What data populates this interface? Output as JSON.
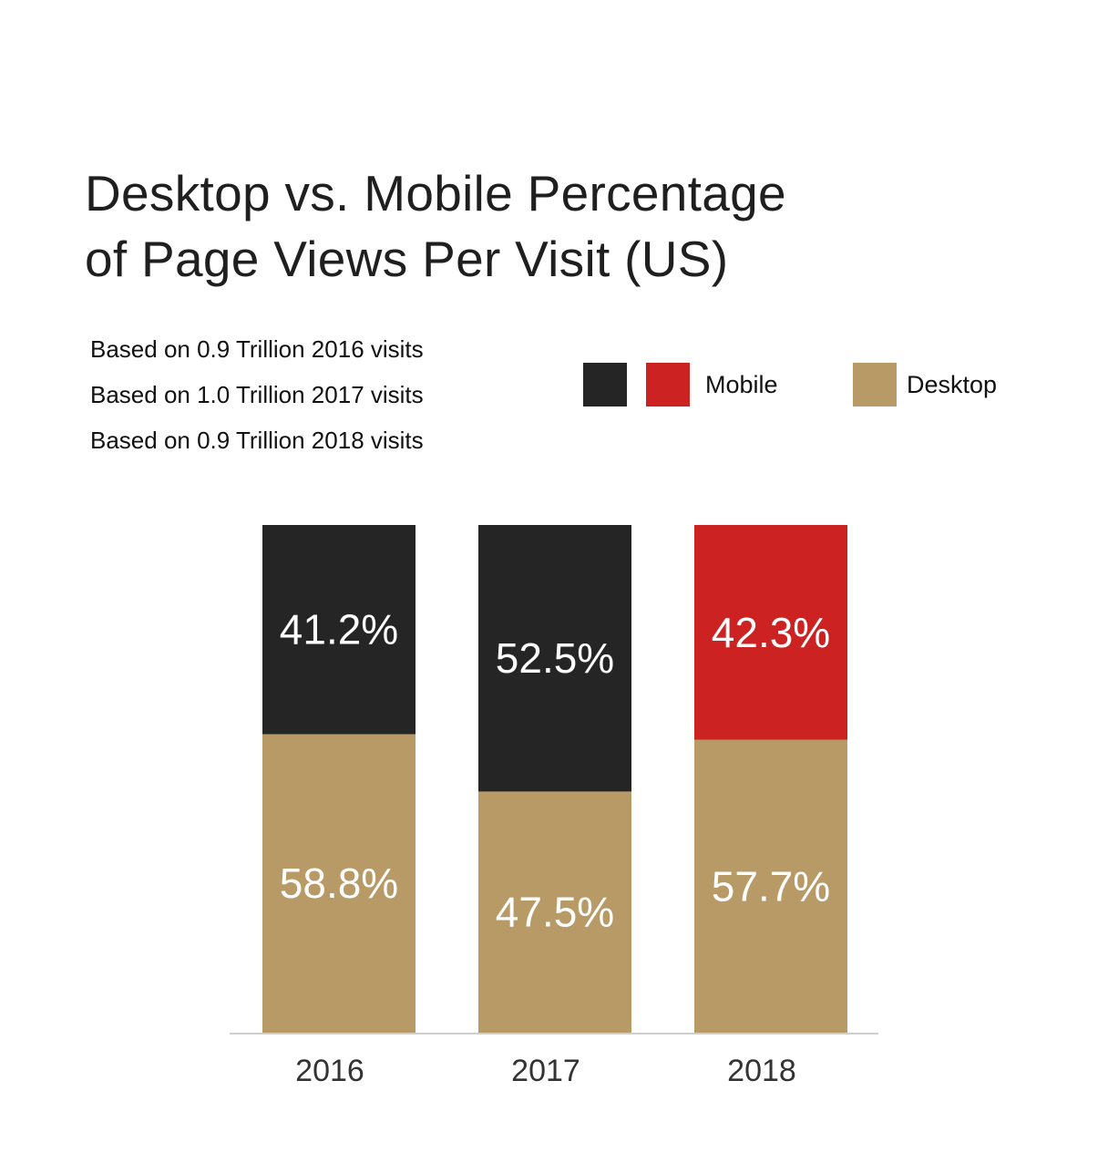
{
  "title": {
    "line1": "Desktop vs. Mobile Percentage",
    "line2": "of Page Views Per Visit (US)"
  },
  "notes": [
    "Based on 0.9 Trillion 2016 visits",
    "Based on 1.0 Trillion 2017 visits",
    "Based on 0.9 Trillion 2018 visits"
  ],
  "legend": {
    "mobile_label": "Mobile",
    "desktop_label": "Desktop",
    "colors": {
      "mobile_dark": "#252525",
      "mobile_red": "#cc2222",
      "desktop": "#b89a67"
    }
  },
  "chart_data": {
    "type": "bar",
    "stacked": true,
    "categories": [
      "2016",
      "2017",
      "2018"
    ],
    "series": [
      {
        "name": "Desktop",
        "values": [
          58.8,
          47.5,
          57.7
        ],
        "labels": [
          "58.8%",
          "47.5%",
          "57.7%"
        ],
        "color": "#b89a67"
      },
      {
        "name": "Mobile",
        "values": [
          41.2,
          52.5,
          42.3
        ],
        "labels": [
          "41.2%",
          "52.5%",
          "42.3%"
        ],
        "colors": [
          "#252525",
          "#252525",
          "#cc2222"
        ]
      }
    ],
    "title": "Desktop vs. Mobile Percentage of Page Views Per Visit (US)",
    "xlabel": "",
    "ylabel": "",
    "ylim": [
      0,
      100
    ],
    "grid": false,
    "legend_position": "top-right"
  }
}
